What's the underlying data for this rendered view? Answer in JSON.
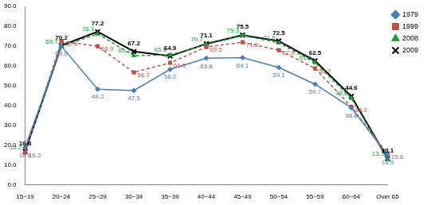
{
  "chart_data": {
    "type": "line",
    "categories": [
      "15~19",
      "20~24",
      "25~29",
      "30~34",
      "35~39",
      "40~44",
      "45~49",
      "50~54",
      "55~59",
      "60~64",
      "Over 65"
    ],
    "series": [
      {
        "name": "1979",
        "color": "#4a7ebb",
        "marker": "diamond",
        "line_style": "solid",
        "values": [
          18.8,
          69.9,
          48.2,
          47.5,
          58.2,
          63.8,
          64.1,
          59.1,
          50.7,
          38.8,
          14.9
        ]
      },
      {
        "name": "1999",
        "color": "#c0504d",
        "marker": "square",
        "line_style": "dashed",
        "values": [
          16.2,
          72.4,
          69.9,
          56.7,
          61.5,
          69.5,
          71.9,
          67.9,
          58.7,
          39.3,
          15.6
        ]
      },
      {
        "name": "2008",
        "color": "#1e9e3a",
        "marker": "triangle",
        "line_style": "dashed",
        "values": [
          16.2,
          69.7,
          76.1,
          65.1,
          65.5,
          70.7,
          75.3,
          71.6,
          61.6,
          43.6,
          13.1
        ]
      },
      {
        "name": "2009",
        "color": "#000000",
        "marker": "cross",
        "line_style": "solid",
        "values": [
          16.8,
          70.2,
          77.2,
          67.2,
          64.9,
          71.1,
          75.5,
          72.5,
          62.5,
          44.6,
          13.1
        ]
      }
    ],
    "ylim": [
      0,
      90
    ],
    "yticks": [
      {
        "value": 0,
        "label": "0.0"
      },
      {
        "value": 10,
        "label": "10.0"
      },
      {
        "value": 20,
        "label": "20.0"
      },
      {
        "value": 30,
        "label": "30.0"
      },
      {
        "value": 40,
        "label": "40.0"
      },
      {
        "value": 50,
        "label": "50.0"
      },
      {
        "value": 60,
        "label": "60.0"
      },
      {
        "value": 70,
        "label": "70.0"
      },
      {
        "value": 80,
        "label": "80.0"
      },
      {
        "value": 90,
        "label": "90.0"
      }
    ],
    "grid": false,
    "legend": "upper right",
    "data_labels": true
  }
}
